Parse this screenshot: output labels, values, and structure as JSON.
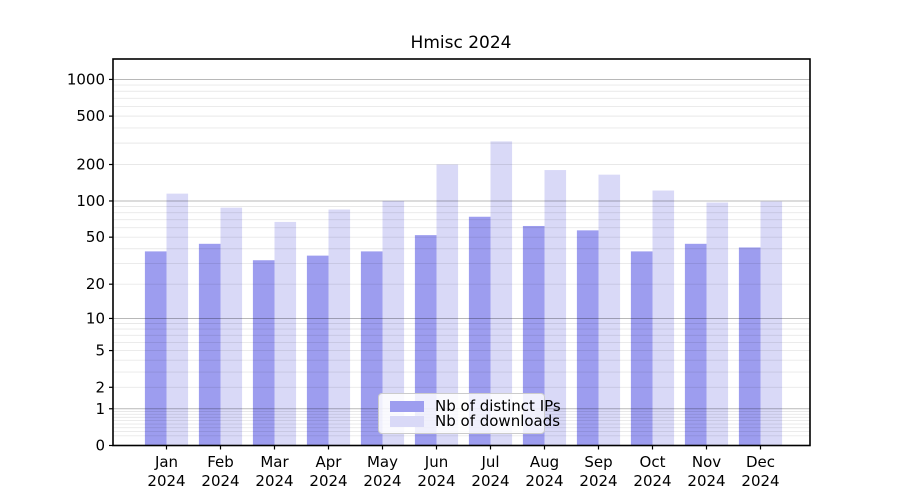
{
  "figure": {
    "title": "Hmisc 2024"
  },
  "chart_data": {
    "type": "bar",
    "title": "Hmisc 2024",
    "categories": [
      "Jan",
      "Feb",
      "Mar",
      "Apr",
      "May",
      "Jun",
      "Jul",
      "Aug",
      "Sep",
      "Oct",
      "Nov",
      "Dec"
    ],
    "x_sublabel": "2024",
    "series": [
      {
        "name": "Nb of distinct IPs",
        "color": "#9d9def",
        "values": [
          38,
          44,
          32,
          35,
          38,
          52,
          74,
          62,
          57,
          38,
          44,
          41
        ]
      },
      {
        "name": "Nb of downloads",
        "color": "#d9d9f7",
        "values": [
          115,
          88,
          67,
          85,
          100,
          200,
          310,
          180,
          165,
          122,
          97,
          99
        ]
      }
    ],
    "xlabel": "",
    "ylabel": "",
    "yscale": "log1p",
    "yticks": [
      0,
      1,
      2,
      5,
      10,
      20,
      50,
      100,
      200,
      500,
      1000
    ],
    "ylim": [
      0,
      1400
    ],
    "grid": true,
    "legend_position": "lower center"
  }
}
